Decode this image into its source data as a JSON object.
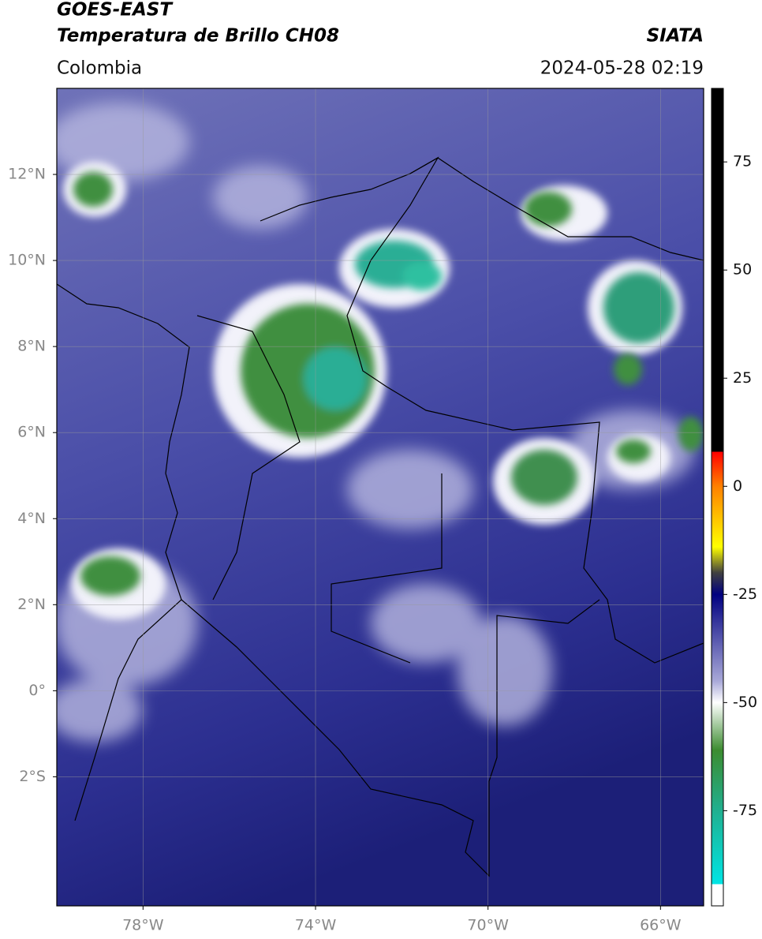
{
  "header": {
    "title": "GOES-EAST",
    "subtitle": "Temperatura de Brillo CH08",
    "source": "SIATA",
    "region": "Colombia",
    "timestamp": "2024-05-28 02:19"
  },
  "map": {
    "xlim": [
      -80,
      -65
    ],
    "ylim": [
      -5,
      14
    ],
    "grid": true,
    "grid_color": "#9a9a9a",
    "xticks": [
      {
        "value": -78,
        "label": "78°W"
      },
      {
        "value": -74,
        "label": "74°W"
      },
      {
        "value": -70,
        "label": "70°W"
      },
      {
        "value": -66,
        "label": "66°W"
      }
    ],
    "yticks": [
      {
        "value": 12,
        "label": "12°N"
      },
      {
        "value": 10,
        "label": "10°N"
      },
      {
        "value": 8,
        "label": "8°N"
      },
      {
        "value": 6,
        "label": "6°N"
      },
      {
        "value": 4,
        "label": "4°N"
      },
      {
        "value": 2,
        "label": "2°N"
      },
      {
        "value": 0,
        "label": "0°"
      },
      {
        "value": -2,
        "label": "2°S"
      }
    ]
  },
  "colorbar": {
    "lim": [
      -97,
      92
    ],
    "ticks": [
      75,
      50,
      25,
      0,
      -25,
      -50,
      -75
    ],
    "colormap": [
      {
        "value": 92,
        "color": "#000000"
      },
      {
        "value": 8,
        "color": "#000000"
      },
      {
        "value": 8,
        "color": "#ff0000"
      },
      {
        "value": 0,
        "color": "#ff8000"
      },
      {
        "value": -14,
        "color": "#ffff00"
      },
      {
        "value": -20,
        "color": "#404040"
      },
      {
        "value": -25,
        "color": "#000080"
      },
      {
        "value": -45,
        "color": "#a8a8d8"
      },
      {
        "value": -50,
        "color": "#ffffff"
      },
      {
        "value": -61,
        "color": "#3c8c30"
      },
      {
        "value": -75,
        "color": "#20b090"
      },
      {
        "value": -92,
        "color": "#00e5e5"
      },
      {
        "value": -92,
        "color": "#ffffff"
      },
      {
        "value": -97,
        "color": "#ffffff"
      }
    ]
  }
}
